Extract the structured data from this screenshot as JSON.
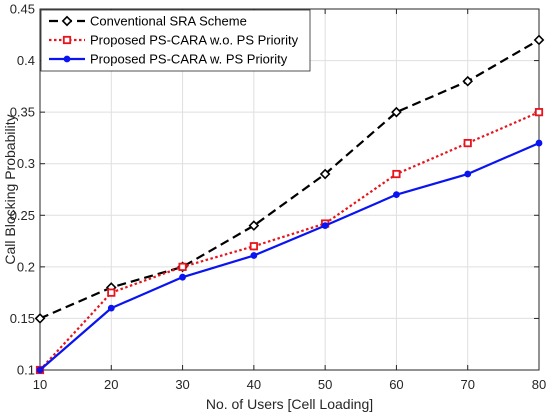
{
  "chart_data": {
    "type": "line",
    "xlabel": "No. of Users [Cell Loading]",
    "ylabel": "Call Blocking Probability",
    "xlim": [
      10,
      80
    ],
    "ylim": [
      0.1,
      0.45
    ],
    "xticks": [
      10,
      20,
      30,
      40,
      50,
      60,
      70,
      80
    ],
    "yticks": [
      0.1,
      0.15,
      0.2,
      0.25,
      0.3,
      0.35,
      0.4,
      0.45
    ],
    "ytick_labels": [
      "0.1",
      "0.15",
      "0.2",
      "0.25",
      "0.3",
      "0.35",
      "0.4",
      "0.45"
    ],
    "grid": true,
    "legend_position": "top-left",
    "x": [
      10,
      20,
      30,
      40,
      50,
      60,
      70,
      80
    ],
    "series": [
      {
        "name": "Conventional SRA Scheme",
        "values": [
          0.15,
          0.18,
          0.2,
          0.24,
          0.29,
          0.35,
          0.38,
          0.42
        ],
        "color": "#000000",
        "line_style": "dashed",
        "marker": "diamond"
      },
      {
        "name": "Proposed PS-CARA w.o. PS Priority",
        "values": [
          0.1,
          0.175,
          0.2,
          0.22,
          0.242,
          0.29,
          0.32,
          0.35
        ],
        "color": "#e8141c",
        "line_style": "dotted",
        "marker": "square"
      },
      {
        "name": "Proposed PS-CARA w. PS Priority",
        "values": [
          0.1,
          0.16,
          0.19,
          0.211,
          0.24,
          0.27,
          0.29,
          0.32
        ],
        "color": "#0a14f0",
        "line_style": "solid",
        "marker": "circle"
      }
    ]
  }
}
